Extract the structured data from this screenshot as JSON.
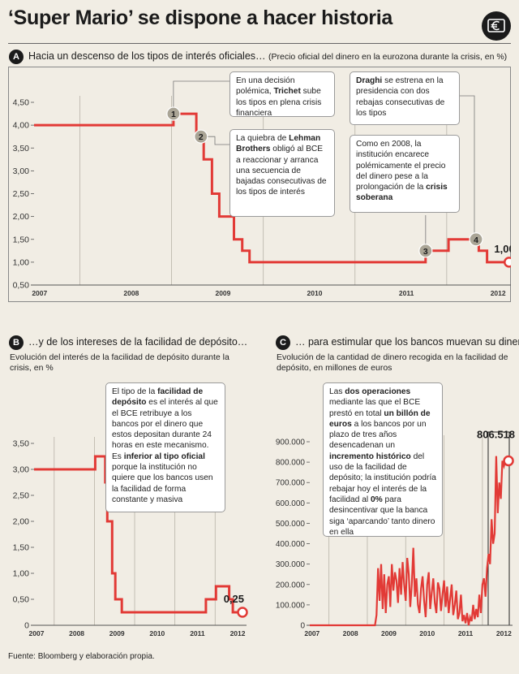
{
  "title": "‘Super Mario’ se dispone a hacer historia",
  "source": "Fuente: Bloomberg y elaboración propia.",
  "colors": {
    "line": "#e23a36",
    "axis": "#555555",
    "marker": "#aaa596",
    "background": "#f1ede4"
  },
  "section_a": {
    "badge": "A",
    "title": "Hacia un descenso de los tipos de interés oficiales…",
    "subtitle": "(Precio oficial del dinero en la eurozona durante la crisis, en %)",
    "end_label": "1,00",
    "markers": [
      "1",
      "2",
      "3",
      "4"
    ],
    "callouts": [
      {
        "pre": "En una decisión polémica, ",
        "bold": "Trichet",
        "post": " sube los tipos en plena crisis financiera"
      },
      {
        "pre": "La quiebra de ",
        "bold": "Lehman Brothers",
        "post": " obligó al BCE a reaccionar y arranca una secuencia de bajadas consecutivas de los tipos de interés"
      },
      {
        "pre": "",
        "bold": "Draghi",
        "post": " se estrena en la presidencia con dos rebajas consecutivas de los tipos"
      },
      {
        "pre": "Como en 2008, la institución encarece polémicamente el precio del dinero pese a la prolongación de la ",
        "bold": "crisis soberana",
        "post": ""
      }
    ]
  },
  "section_b": {
    "badge": "B",
    "title": "…y de los intereses de la facilidad de depósito…",
    "subtitle": "Evolución del interés de la facilidad de depósito durante la crisis, en %",
    "end_label": "0,25",
    "callout": {
      "p1": "El tipo de la ",
      "b1": "facilidad de depósito",
      "p2": " es el interés al que el BCE retribuye a los bancos por el dinero que estos depositan durante 24 horas en este mecanismo. Es ",
      "b2": "inferior al tipo oficial",
      "p3": " porque la institución no quiere que los bancos usen la facilidad de forma constante y masiva"
    }
  },
  "section_c": {
    "badge": "C",
    "title": "… para estimular que los bancos muevan su dinero",
    "subtitle": "Evolución de la cantidad de dinero recogida en la facilidad de depósito, en millones de euros",
    "end_label": "806.518",
    "callout": {
      "p1": "Las ",
      "b1": "dos operaciones",
      "p2": " mediante las que el BCE prestó en total ",
      "b2": "un billón de euros",
      "p3": " a los bancos por un plazo de tres años desencadenan un ",
      "b3": "incremento histórico",
      "p4": " del uso de la facilidad de depósito; la institución podría rebajar hoy el interés de la facilidad al ",
      "b4": "0%",
      "p5": " para desincentivar que la banca siga ‘aparcando’ tanto dinero en ella"
    }
  },
  "chart_data": [
    {
      "id": "A",
      "type": "line",
      "title": "Hacia un descenso de los tipos de interés oficiales…",
      "ylabel": "",
      "xlabel": "",
      "xlim": [
        2007.0,
        2012.2
      ],
      "ylim": [
        0.5,
        4.5
      ],
      "x_ticks": [
        "2007",
        "2008",
        "2009",
        "2010",
        "2011",
        "2012"
      ],
      "y_ticks": [
        "0,50",
        "1,00",
        "1,50",
        "2,00",
        "2,50",
        "3,00",
        "3,50",
        "4,00",
        "4,50"
      ],
      "y_tick_values": [
        0.5,
        1.0,
        1.5,
        2.0,
        2.5,
        3.0,
        3.5,
        4.0,
        4.5
      ],
      "x": [
        2007.0,
        2008.52,
        2008.52,
        2008.77,
        2008.77,
        2008.85,
        2008.85,
        2008.94,
        2008.94,
        2009.02,
        2009.02,
        2009.18,
        2009.18,
        2009.27,
        2009.27,
        2009.35,
        2009.35,
        2009.43,
        2009.43,
        2011.27,
        2011.27,
        2011.52,
        2011.52,
        2011.85,
        2011.85,
        2011.94,
        2011.94,
        2012.18
      ],
      "values": [
        4.0,
        4.0,
        4.25,
        4.25,
        3.75,
        3.75,
        3.25,
        3.25,
        2.5,
        2.5,
        2.0,
        2.0,
        1.5,
        1.5,
        1.25,
        1.25,
        1.0,
        1.0,
        1.0,
        1.0,
        1.25,
        1.25,
        1.5,
        1.5,
        1.25,
        1.25,
        1.0,
        1.0
      ],
      "annotations": [
        {
          "label": "1",
          "x": 2008.52,
          "y": 4.25
        },
        {
          "label": "2",
          "x": 2008.82,
          "y": 3.75
        },
        {
          "label": "3",
          "x": 2011.27,
          "y": 1.25
        },
        {
          "label": "4",
          "x": 2011.82,
          "y": 1.5
        }
      ],
      "end_value_label": "1,00",
      "grid": "vertical"
    },
    {
      "id": "B",
      "type": "line",
      "title": "…y de los intereses de la facilidad de depósito…",
      "ylabel": "",
      "xlabel": "",
      "xlim": [
        2007.0,
        2012.2
      ],
      "ylim": [
        0,
        3.5
      ],
      "x_ticks": [
        "2007",
        "2008",
        "2009",
        "2010",
        "2011",
        "2012"
      ],
      "y_ticks": [
        "0",
        "0,50",
        "1,00",
        "1,50",
        "2,00",
        "2,50",
        "3,00",
        "3,50"
      ],
      "y_tick_values": [
        0,
        0.5,
        1.0,
        1.5,
        2.0,
        2.5,
        3.0,
        3.5
      ],
      "x": [
        2007.0,
        2008.52,
        2008.52,
        2008.77,
        2008.77,
        2008.82,
        2008.82,
        2008.94,
        2008.94,
        2009.02,
        2009.02,
        2009.18,
        2009.18,
        2009.27,
        2009.27,
        2011.27,
        2011.27,
        2011.52,
        2011.52,
        2011.85,
        2011.85,
        2011.94,
        2011.94,
        2012.18
      ],
      "values": [
        3.0,
        3.0,
        3.25,
        3.25,
        2.75,
        2.75,
        2.0,
        2.0,
        1.0,
        1.0,
        0.5,
        0.5,
        0.25,
        0.25,
        0.25,
        0.25,
        0.5,
        0.5,
        0.75,
        0.75,
        0.5,
        0.5,
        0.25,
        0.25
      ],
      "end_value_label": "0,25",
      "grid": "vertical"
    },
    {
      "id": "C",
      "type": "line",
      "title": "… para estimular que los bancos muevan su dinero",
      "ylabel": "",
      "xlabel": "",
      "xlim": [
        2007.0,
        2012.2
      ],
      "ylim": [
        0,
        900000
      ],
      "x_ticks": [
        "2007",
        "2008",
        "2009",
        "2010",
        "2011",
        "2012"
      ],
      "y_ticks": [
        "0",
        "100.000",
        "200.000",
        "300.000",
        "400.000",
        "500.000",
        "600.000",
        "700.000",
        "800.000",
        "900.000"
      ],
      "y_tick_values": [
        0,
        100000,
        200000,
        300000,
        400000,
        500000,
        600000,
        700000,
        800000,
        900000
      ],
      "x": [
        2007.0,
        2008.7,
        2008.74,
        2008.78,
        2008.82,
        2008.86,
        2008.9,
        2008.94,
        2008.98,
        2009.02,
        2009.06,
        2009.1,
        2009.14,
        2009.18,
        2009.22,
        2009.26,
        2009.3,
        2009.34,
        2009.38,
        2009.42,
        2009.46,
        2009.5,
        2009.54,
        2009.58,
        2009.62,
        2009.66,
        2009.7,
        2009.74,
        2009.78,
        2009.82,
        2009.86,
        2009.9,
        2009.94,
        2009.98,
        2010.02,
        2010.06,
        2010.1,
        2010.14,
        2010.18,
        2010.22,
        2010.26,
        2010.3,
        2010.34,
        2010.38,
        2010.42,
        2010.46,
        2010.5,
        2010.54,
        2010.58,
        2010.62,
        2010.66,
        2010.7,
        2010.74,
        2010.78,
        2010.82,
        2010.86,
        2010.9,
        2010.94,
        2010.98,
        2011.02,
        2011.06,
        2011.1,
        2011.14,
        2011.18,
        2011.22,
        2011.26,
        2011.3,
        2011.34,
        2011.38,
        2011.42,
        2011.46,
        2011.5,
        2011.54,
        2011.58,
        2011.62,
        2011.66,
        2011.7,
        2011.74,
        2011.78,
        2011.82,
        2011.86,
        2011.9,
        2011.94,
        2011.98,
        2012.02,
        2012.06,
        2012.1,
        2012.14,
        2012.18
      ],
      "values": [
        0,
        0,
        50000,
        280000,
        120000,
        300000,
        80000,
        250000,
        60000,
        200000,
        240000,
        90000,
        300000,
        170000,
        260000,
        220000,
        110000,
        280000,
        150000,
        310000,
        200000,
        120000,
        330000,
        250000,
        90000,
        200000,
        380000,
        140000,
        230000,
        100000,
        60000,
        180000,
        240000,
        120000,
        40000,
        200000,
        260000,
        80000,
        160000,
        230000,
        110000,
        60000,
        210000,
        180000,
        70000,
        150000,
        220000,
        90000,
        190000,
        60000,
        130000,
        200000,
        50000,
        100000,
        170000,
        30000,
        60000,
        150000,
        20000,
        50000,
        10000,
        60000,
        0,
        40000,
        20000,
        100000,
        30000,
        80000,
        40000,
        150000,
        60000,
        200000,
        230000,
        140000,
        280000,
        350000,
        300000,
        520000,
        400000,
        450000,
        830000,
        550000,
        700000,
        620000,
        806518,
        780000,
        806518,
        806518,
        806518
      ],
      "highlight_x": [
        2011.65,
        2012.2
      ],
      "end_value_label": "806.518",
      "grid": "vertical"
    }
  ]
}
